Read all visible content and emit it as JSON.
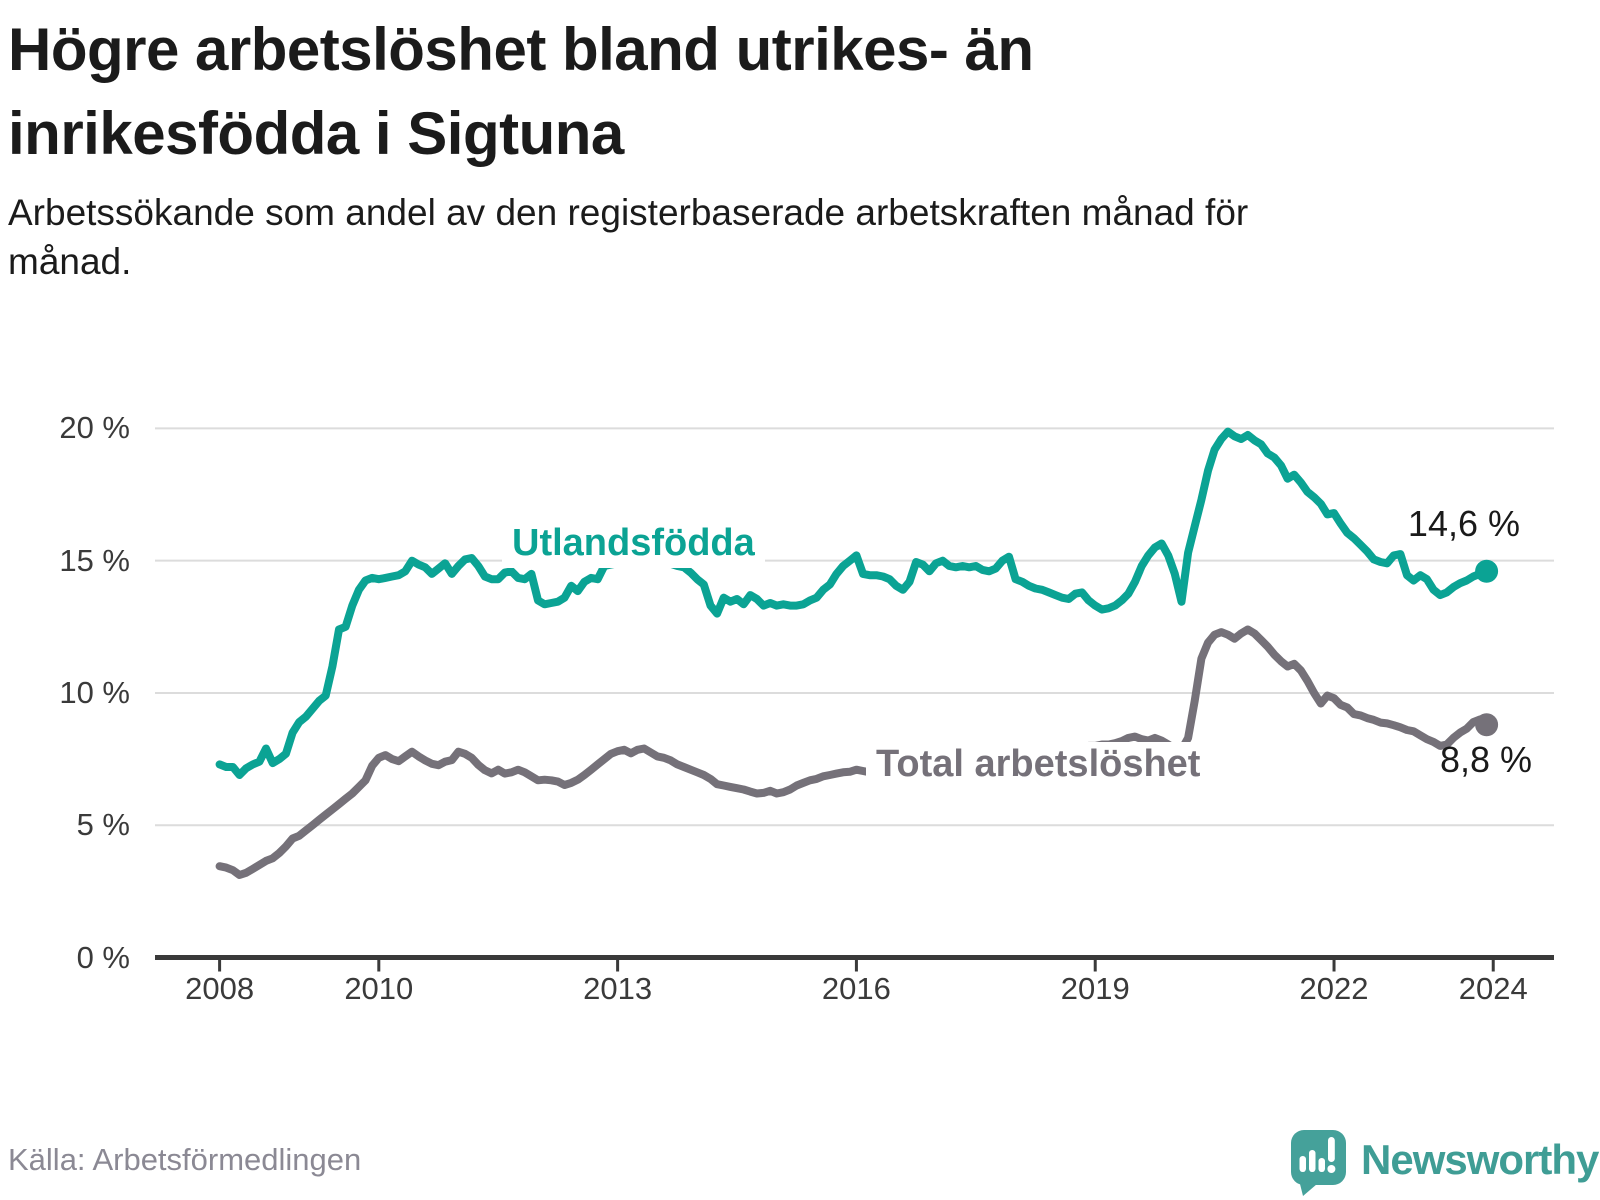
{
  "header": {
    "title": "Högre arbetslöshet bland utrikes- än inrikesfödda i Sigtuna",
    "subtitle": "Arbetssökande som andel av den registerbaserade arbetskraften månad för månad."
  },
  "footer": {
    "source": "Källa: Arbetsförmedlingen",
    "brand": "Newsworthy",
    "logo_icon": "newsworthy-speech-bubble-bar-chart-icon"
  },
  "colors": {
    "accent_teal": "#0ba394",
    "accent_gray": "#757179",
    "axis": "#3a3a3a",
    "grid": "#dcdcdc",
    "title_text": "#1b1b1b",
    "source_text": "#8b8994",
    "brand_teal": "#3f9d95"
  },
  "chart_data": {
    "type": "line",
    "title": "Högre arbetslöshet bland utrikes- än inrikesfödda i Sigtuna",
    "subtitle": "Arbetssökande som andel av den registerbaserade arbetskraften månad för månad.",
    "xlabel": "",
    "ylabel": "",
    "x_start_year": 2008,
    "x_step_months": 1,
    "x_end_label_month": "2023-12",
    "ylim": [
      0,
      21
    ],
    "yticks": [
      "0 %",
      "5 %",
      "10 %",
      "15 %",
      "20 %"
    ],
    "ytick_values": [
      0,
      5,
      10,
      15,
      20
    ],
    "xticks": [
      2008,
      2010,
      2013,
      2016,
      2019,
      2022,
      2024
    ],
    "grid": true,
    "legend_position": "inline-labels",
    "series": [
      {
        "name": "Utlandsfödda",
        "color": "#0ba394",
        "end_label": "14,6 %",
        "end_value": 14.6,
        "values": [
          7.3,
          7.2,
          7.2,
          6.9,
          7.15,
          7.3,
          7.4,
          7.9,
          7.35,
          7.5,
          7.7,
          8.5,
          8.9,
          9.1,
          9.4,
          9.7,
          9.9,
          11.0,
          12.4,
          12.5,
          13.3,
          13.9,
          14.25,
          14.35,
          14.3,
          14.35,
          14.4,
          14.45,
          14.6,
          15.0,
          14.85,
          14.75,
          14.5,
          14.7,
          14.9,
          14.5,
          14.8,
          15.05,
          15.1,
          14.8,
          14.4,
          14.3,
          14.3,
          14.55,
          14.6,
          14.35,
          14.3,
          14.5,
          13.5,
          13.35,
          13.4,
          13.45,
          13.6,
          14.05,
          13.85,
          14.2,
          14.35,
          14.3,
          14.8,
          14.85,
          14.9,
          14.92,
          14.95,
          14.95,
          14.9,
          14.88,
          14.9,
          14.92,
          14.88,
          14.8,
          14.75,
          14.55,
          14.3,
          14.1,
          13.3,
          13.0,
          13.6,
          13.45,
          13.55,
          13.35,
          13.7,
          13.55,
          13.3,
          13.4,
          13.3,
          13.35,
          13.3,
          13.3,
          13.35,
          13.5,
          13.6,
          13.9,
          14.1,
          14.5,
          14.8,
          15.0,
          15.2,
          14.5,
          14.45,
          14.45,
          14.4,
          14.3,
          14.05,
          13.9,
          14.2,
          14.95,
          14.85,
          14.6,
          14.9,
          15.0,
          14.8,
          14.75,
          14.8,
          14.75,
          14.8,
          14.65,
          14.6,
          14.7,
          15.0,
          15.15,
          14.3,
          14.2,
          14.05,
          13.95,
          13.9,
          13.8,
          13.7,
          13.6,
          13.55,
          13.75,
          13.8,
          13.5,
          13.3,
          13.15,
          13.2,
          13.3,
          13.5,
          13.75,
          14.2,
          14.8,
          15.2,
          15.5,
          15.65,
          15.2,
          14.5,
          13.45,
          15.3,
          16.3,
          17.3,
          18.4,
          19.2,
          19.6,
          19.88,
          19.7,
          19.6,
          19.75,
          19.55,
          19.4,
          19.05,
          18.9,
          18.6,
          18.1,
          18.25,
          17.95,
          17.6,
          17.4,
          17.15,
          16.75,
          16.8,
          16.4,
          16.05,
          15.85,
          15.6,
          15.35,
          15.05,
          14.95,
          14.9,
          15.2,
          15.25,
          14.45,
          14.25,
          14.45,
          14.3,
          13.9,
          13.7,
          13.8,
          14.0,
          14.15,
          14.25,
          14.4,
          14.5,
          14.6
        ]
      },
      {
        "name": "Total arbetslöshet",
        "color": "#757179",
        "end_label": "8,8 %",
        "end_value": 8.8,
        "values": [
          3.45,
          3.4,
          3.3,
          3.12,
          3.2,
          3.35,
          3.5,
          3.65,
          3.75,
          3.95,
          4.2,
          4.5,
          4.6,
          4.8,
          5.0,
          5.2,
          5.4,
          5.6,
          5.8,
          6.0,
          6.2,
          6.45,
          6.7,
          7.25,
          7.55,
          7.65,
          7.5,
          7.42,
          7.6,
          7.78,
          7.6,
          7.45,
          7.32,
          7.27,
          7.4,
          7.46,
          7.78,
          7.7,
          7.55,
          7.28,
          7.08,
          6.96,
          7.1,
          6.95,
          7.0,
          7.1,
          7.0,
          6.85,
          6.7,
          6.72,
          6.7,
          6.65,
          6.52,
          6.6,
          6.72,
          6.9,
          7.1,
          7.3,
          7.5,
          7.7,
          7.8,
          7.85,
          7.72,
          7.85,
          7.9,
          7.75,
          7.6,
          7.55,
          7.45,
          7.3,
          7.2,
          7.1,
          7.0,
          6.9,
          6.75,
          6.55,
          6.5,
          6.45,
          6.4,
          6.35,
          6.27,
          6.2,
          6.22,
          6.3,
          6.2,
          6.25,
          6.35,
          6.5,
          6.6,
          6.7,
          6.75,
          6.85,
          6.9,
          6.95,
          7.0,
          7.02,
          7.1,
          7.05,
          7.0,
          7.05,
          7.08,
          7.02,
          7.0,
          7.05,
          7.1,
          7.05,
          7.0,
          7.0,
          7.0,
          7.0,
          7.05,
          7.05,
          7.1,
          7.1,
          7.15,
          7.15,
          7.2,
          7.25,
          7.3,
          7.35,
          7.4,
          7.45,
          7.5,
          7.55,
          7.6,
          7.65,
          7.7,
          7.75,
          7.85,
          7.9,
          7.95,
          8.0,
          8.0,
          8.05,
          8.05,
          8.1,
          8.18,
          8.3,
          8.35,
          8.25,
          8.2,
          8.3,
          8.2,
          8.05,
          7.9,
          7.85,
          8.3,
          9.7,
          11.3,
          11.9,
          12.2,
          12.3,
          12.2,
          12.05,
          12.25,
          12.4,
          12.25,
          12.0,
          11.75,
          11.45,
          11.2,
          11.0,
          11.1,
          10.85,
          10.45,
          10.0,
          9.6,
          9.9,
          9.8,
          9.55,
          9.45,
          9.2,
          9.15,
          9.05,
          8.98,
          8.88,
          8.85,
          8.78,
          8.7,
          8.6,
          8.55,
          8.4,
          8.25,
          8.15,
          8.0,
          8.05,
          8.3,
          8.5,
          8.65,
          8.9,
          9.0,
          8.8
        ]
      }
    ]
  }
}
